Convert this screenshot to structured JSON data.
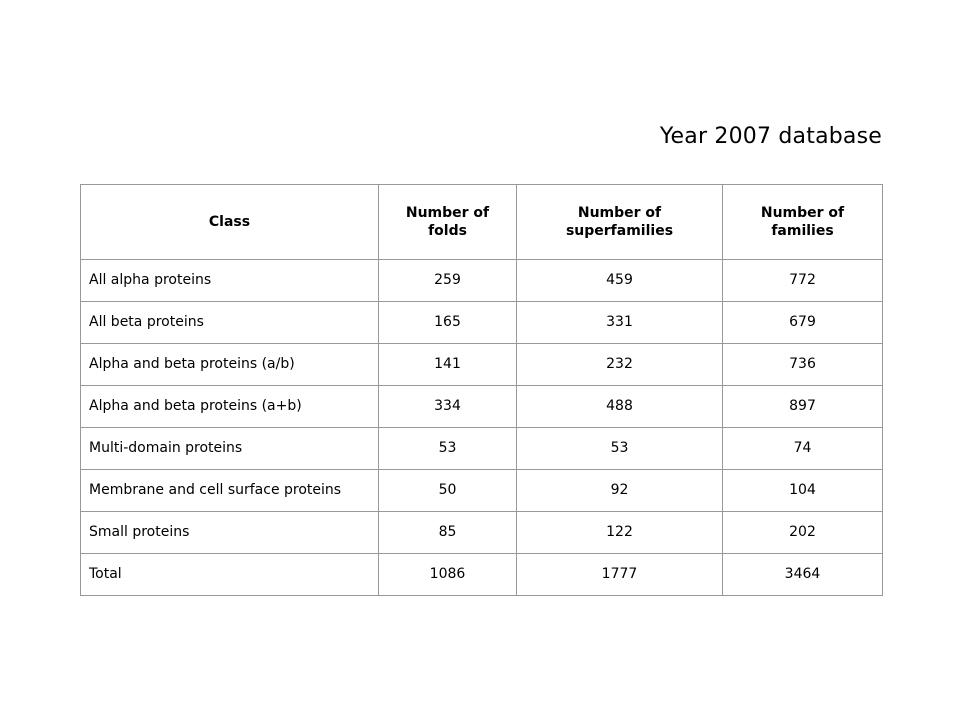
{
  "title": "Year 2007 database",
  "table": {
    "headers": [
      "Class",
      "Number of folds",
      "Number of superfamilies",
      "Number of families"
    ],
    "rows": [
      {
        "class": "All alpha proteins",
        "folds": "259",
        "superfamilies": "459",
        "families": "772"
      },
      {
        "class": "All beta proteins",
        "folds": "165",
        "superfamilies": "331",
        "families": "679"
      },
      {
        "class": "Alpha and beta proteins (a/b)",
        "folds": "141",
        "superfamilies": "232",
        "families": "736"
      },
      {
        "class": "Alpha and beta proteins (a+b)",
        "folds": "334",
        "superfamilies": "488",
        "families": "897"
      },
      {
        "class": "Multi-domain proteins",
        "folds": "53",
        "superfamilies": "53",
        "families": "74"
      },
      {
        "class": "Membrane and cell surface proteins",
        "folds": "50",
        "superfamilies": "92",
        "families": "104"
      },
      {
        "class": "Small proteins",
        "folds": "85",
        "superfamilies": "122",
        "families": "202"
      },
      {
        "class": "Total",
        "folds": "1086",
        "superfamilies": "1777",
        "families": "3464"
      }
    ]
  }
}
